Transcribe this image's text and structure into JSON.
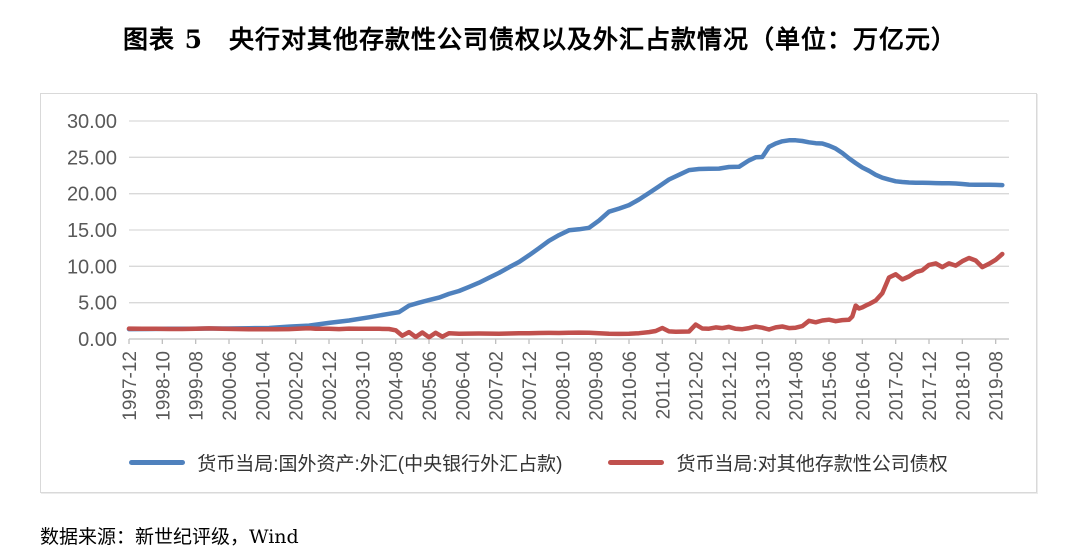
{
  "title": "图表 5　央行对其他存款性公司债权以及外汇占款情况（单位：万亿元）",
  "source": "数据来源：新世纪评级，Wind",
  "colors": {
    "series_fx_blue": "#4F81BD",
    "series_claims_red": "#C0504D",
    "gridline": "#D9D9D9",
    "axis_line": "#BFBFBF",
    "tick_label": "#595959",
    "legend_text": "#333333"
  },
  "chart_data": {
    "type": "line",
    "title": "央行对其他存款性公司债权以及外汇占款情况",
    "unit": "万亿元",
    "grid": true,
    "legend_position": "bottom",
    "ylim": [
      0,
      30
    ],
    "y_ticks": [
      0,
      5,
      10,
      15,
      20,
      25,
      30
    ],
    "y_tick_labels": [
      "0.00",
      "5.00",
      "10.00",
      "15.00",
      "20.00",
      "25.00",
      "30.00"
    ],
    "x_tick_labels": [
      "1997-12",
      "1998-10",
      "1999-08",
      "2000-06",
      "2001-04",
      "2002-02",
      "2002-12",
      "2003-10",
      "2004-08",
      "2005-06",
      "2006-04",
      "2007-02",
      "2007-12",
      "2008-10",
      "2009-08",
      "2010-06",
      "2011-04",
      "2012-02",
      "2012-12",
      "2013-10",
      "2014-08",
      "2015-06",
      "2016-04",
      "2017-02",
      "2017-12",
      "2018-10",
      "2019-08"
    ],
    "x_tick_months": [
      0,
      10,
      20,
      30,
      40,
      50,
      60,
      70,
      80,
      90,
      100,
      110,
      120,
      130,
      140,
      150,
      160,
      170,
      180,
      190,
      200,
      210,
      220,
      230,
      240,
      250,
      260
    ],
    "x_max_month": 264,
    "series": [
      {
        "name": "货币当局:国外资产:外汇(中央银行外汇占款)",
        "color": "#4F81BD",
        "points": [
          [
            0,
            1.36
          ],
          [
            6,
            1.38
          ],
          [
            12,
            1.42
          ],
          [
            18,
            1.41
          ],
          [
            24,
            1.45
          ],
          [
            30,
            1.45
          ],
          [
            36,
            1.48
          ],
          [
            42,
            1.52
          ],
          [
            48,
            1.7
          ],
          [
            54,
            1.85
          ],
          [
            60,
            2.21
          ],
          [
            66,
            2.55
          ],
          [
            72,
            2.98
          ],
          [
            78,
            3.47
          ],
          [
            81,
            3.7
          ],
          [
            84,
            4.59
          ],
          [
            87,
            5.0
          ],
          [
            90,
            5.35
          ],
          [
            93,
            5.7
          ],
          [
            96,
            6.21
          ],
          [
            99,
            6.6
          ],
          [
            102,
            7.17
          ],
          [
            105,
            7.75
          ],
          [
            108,
            8.44
          ],
          [
            111,
            9.1
          ],
          [
            114,
            9.87
          ],
          [
            117,
            10.6
          ],
          [
            120,
            11.52
          ],
          [
            123,
            12.5
          ],
          [
            126,
            13.52
          ],
          [
            129,
            14.3
          ],
          [
            132,
            14.96
          ],
          [
            135,
            15.1
          ],
          [
            138,
            15.3
          ],
          [
            141,
            16.3
          ],
          [
            144,
            17.52
          ],
          [
            147,
            17.95
          ],
          [
            150,
            18.43
          ],
          [
            153,
            19.2
          ],
          [
            156,
            20.09
          ],
          [
            159,
            21.0
          ],
          [
            162,
            21.95
          ],
          [
            165,
            22.6
          ],
          [
            168,
            23.24
          ],
          [
            171,
            23.4
          ],
          [
            174,
            23.44
          ],
          [
            177,
            23.45
          ],
          [
            180,
            23.67
          ],
          [
            183,
            23.7
          ],
          [
            186,
            24.58
          ],
          [
            188,
            25.0
          ],
          [
            190,
            25.05
          ],
          [
            192,
            26.43
          ],
          [
            194,
            26.9
          ],
          [
            196,
            27.2
          ],
          [
            198,
            27.35
          ],
          [
            200,
            27.35
          ],
          [
            202,
            27.25
          ],
          [
            204,
            27.07
          ],
          [
            206,
            26.95
          ],
          [
            208,
            26.9
          ],
          [
            210,
            26.6
          ],
          [
            212,
            26.2
          ],
          [
            214,
            25.6
          ],
          [
            216,
            24.85
          ],
          [
            218,
            24.2
          ],
          [
            220,
            23.6
          ],
          [
            222,
            23.15
          ],
          [
            224,
            22.6
          ],
          [
            226,
            22.2
          ],
          [
            228,
            21.94
          ],
          [
            230,
            21.7
          ],
          [
            232,
            21.6
          ],
          [
            234,
            21.53
          ],
          [
            236,
            21.5
          ],
          [
            238,
            21.49
          ],
          [
            240,
            21.48
          ],
          [
            242,
            21.45
          ],
          [
            244,
            21.43
          ],
          [
            246,
            21.42
          ],
          [
            248,
            21.4
          ],
          [
            250,
            21.33
          ],
          [
            252,
            21.25
          ],
          [
            254,
            21.23
          ],
          [
            256,
            21.22
          ],
          [
            258,
            21.23
          ],
          [
            260,
            21.2
          ],
          [
            262,
            21.18
          ]
        ]
      },
      {
        "name": "货币当局:对其他存款性公司债权",
        "color": "#C0504D",
        "points": [
          [
            0,
            1.43
          ],
          [
            4,
            1.42
          ],
          [
            8,
            1.4
          ],
          [
            12,
            1.38
          ],
          [
            16,
            1.37
          ],
          [
            20,
            1.4
          ],
          [
            24,
            1.46
          ],
          [
            28,
            1.42
          ],
          [
            32,
            1.38
          ],
          [
            36,
            1.35
          ],
          [
            40,
            1.33
          ],
          [
            44,
            1.34
          ],
          [
            48,
            1.36
          ],
          [
            52,
            1.44
          ],
          [
            54,
            1.47
          ],
          [
            56,
            1.41
          ],
          [
            60,
            1.4
          ],
          [
            63,
            1.36
          ],
          [
            66,
            1.43
          ],
          [
            69,
            1.41
          ],
          [
            72,
            1.42
          ],
          [
            75,
            1.4
          ],
          [
            78,
            1.38
          ],
          [
            80,
            1.2
          ],
          [
            82,
            0.45
          ],
          [
            84,
            0.95
          ],
          [
            86,
            0.28
          ],
          [
            88,
            0.9
          ],
          [
            90,
            0.25
          ],
          [
            92,
            0.85
          ],
          [
            94,
            0.32
          ],
          [
            96,
            0.78
          ],
          [
            99,
            0.72
          ],
          [
            102,
            0.74
          ],
          [
            105,
            0.76
          ],
          [
            108,
            0.75
          ],
          [
            111,
            0.73
          ],
          [
            114,
            0.76
          ],
          [
            117,
            0.78
          ],
          [
            120,
            0.8
          ],
          [
            123,
            0.82
          ],
          [
            126,
            0.84
          ],
          [
            129,
            0.83
          ],
          [
            132,
            0.86
          ],
          [
            135,
            0.88
          ],
          [
            138,
            0.86
          ],
          [
            141,
            0.8
          ],
          [
            144,
            0.72
          ],
          [
            147,
            0.7
          ],
          [
            150,
            0.73
          ],
          [
            153,
            0.8
          ],
          [
            156,
            0.95
          ],
          [
            158,
            1.1
          ],
          [
            160,
            1.52
          ],
          [
            162,
            1.05
          ],
          [
            164,
            1.0
          ],
          [
            166,
            1.02
          ],
          [
            168,
            1.03
          ],
          [
            170,
            1.98
          ],
          [
            172,
            1.45
          ],
          [
            174,
            1.42
          ],
          [
            176,
            1.6
          ],
          [
            178,
            1.5
          ],
          [
            180,
            1.67
          ],
          [
            182,
            1.4
          ],
          [
            184,
            1.35
          ],
          [
            186,
            1.5
          ],
          [
            188,
            1.7
          ],
          [
            190,
            1.55
          ],
          [
            192,
            1.31
          ],
          [
            194,
            1.6
          ],
          [
            196,
            1.72
          ],
          [
            198,
            1.5
          ],
          [
            200,
            1.55
          ],
          [
            202,
            1.78
          ],
          [
            204,
            2.5
          ],
          [
            206,
            2.3
          ],
          [
            208,
            2.55
          ],
          [
            210,
            2.66
          ],
          [
            212,
            2.45
          ],
          [
            214,
            2.6
          ],
          [
            216,
            2.66
          ],
          [
            217,
            3.1
          ],
          [
            218,
            4.6
          ],
          [
            219,
            4.2
          ],
          [
            220,
            4.35
          ],
          [
            221,
            4.6
          ],
          [
            222,
            4.8
          ],
          [
            224,
            5.3
          ],
          [
            226,
            6.3
          ],
          [
            228,
            8.47
          ],
          [
            230,
            8.9
          ],
          [
            232,
            8.2
          ],
          [
            234,
            8.6
          ],
          [
            236,
            9.2
          ],
          [
            238,
            9.45
          ],
          [
            240,
            10.2
          ],
          [
            242,
            10.4
          ],
          [
            244,
            9.9
          ],
          [
            246,
            10.4
          ],
          [
            248,
            10.1
          ],
          [
            250,
            10.7
          ],
          [
            252,
            11.15
          ],
          [
            254,
            10.8
          ],
          [
            256,
            9.9
          ],
          [
            258,
            10.35
          ],
          [
            260,
            10.9
          ],
          [
            262,
            11.7
          ]
        ]
      }
    ]
  }
}
